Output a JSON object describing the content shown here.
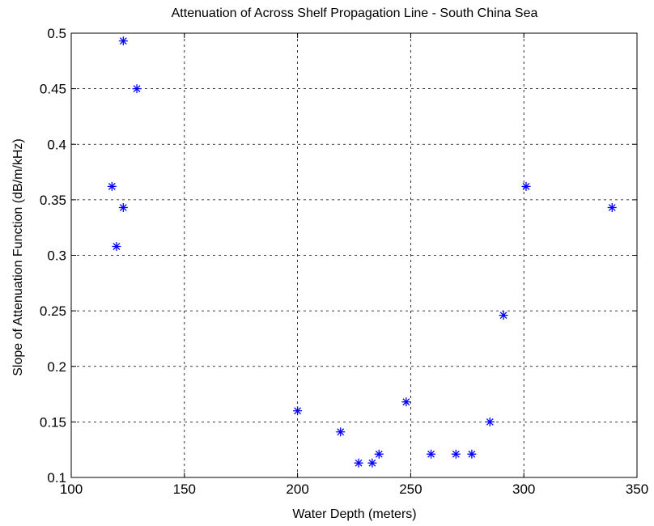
{
  "chart_data": {
    "type": "scatter",
    "title": "Attenuation of Across Shelf Propagation Line - South China Sea",
    "xlabel": "Water Depth (meters)",
    "ylabel": "Slope of Attenuation Function (dB/m/kHz)",
    "xlim": [
      100,
      350
    ],
    "ylim": [
      0.1,
      0.5
    ],
    "xticks": [
      100,
      150,
      200,
      250,
      300,
      350
    ],
    "yticks": [
      0.1,
      0.15,
      0.2,
      0.25,
      0.3,
      0.35,
      0.4,
      0.45,
      0.5
    ],
    "xtick_labels": [
      "100",
      "150",
      "200",
      "250",
      "300",
      "350"
    ],
    "ytick_labels": [
      "0.1",
      "0.15",
      "0.2",
      "0.25",
      "0.3",
      "0.35",
      "0.4",
      "0.45",
      "0.5"
    ],
    "grid": true,
    "marker": "asterisk",
    "marker_color": "#0000ff",
    "series": [
      {
        "x": [
          123,
          129,
          118,
          123,
          120,
          200,
          219,
          227,
          233,
          236,
          248,
          259,
          270,
          277,
          285,
          291,
          301,
          339
        ],
        "y": [
          0.493,
          0.45,
          0.362,
          0.343,
          0.308,
          0.16,
          0.141,
          0.113,
          0.113,
          0.121,
          0.168,
          0.121,
          0.121,
          0.121,
          0.15,
          0.246,
          0.362,
          0.343
        ]
      }
    ]
  }
}
